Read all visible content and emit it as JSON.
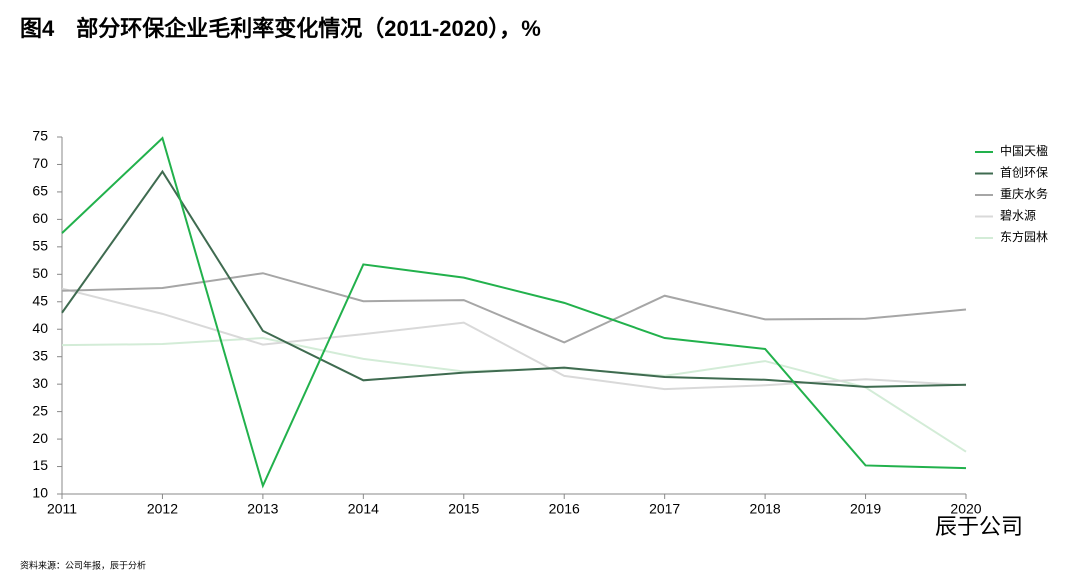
{
  "chart_data": {
    "type": "line",
    "title": "图4　部分环保企业毛利率变化情况（2011-2020），%",
    "source": "资料来源：公司年报，辰于分析",
    "watermark": "辰于公司",
    "categories": [
      "2011",
      "2012",
      "2013",
      "2014",
      "2015",
      "2016",
      "2017",
      "2018",
      "2019",
      "2020"
    ],
    "series": [
      {
        "name": "中国天楹",
        "color": "#22b14c",
        "values": [
          57.5,
          74.8,
          11.5,
          51.8,
          49.4,
          44.8,
          38.4,
          36.4,
          15.2,
          14.7
        ]
      },
      {
        "name": "首创环保",
        "color": "#3f6b50",
        "values": [
          43,
          68.7,
          39.7,
          30.7,
          32.1,
          33,
          31.3,
          30.8,
          29.5,
          29.9
        ]
      },
      {
        "name": "重庆水务",
        "color": "#a6a6a6",
        "values": [
          47,
          47.5,
          50.2,
          45.1,
          45.3,
          37.6,
          46.1,
          41.8,
          41.9,
          43.6
        ]
      },
      {
        "name": "碧水源",
        "color": "#d9d9d9",
        "values": [
          47.4,
          42.8,
          37.2,
          39.1,
          41.2,
          31.5,
          29.1,
          29.8,
          30.9,
          29.8
        ]
      },
      {
        "name": "东方园林",
        "color": "#d3ecd7",
        "values": [
          37.1,
          37.3,
          38.4,
          34.6,
          32.3,
          32.9,
          31.5,
          34.2,
          29.4,
          17.7
        ]
      }
    ],
    "ylim": [
      10,
      75
    ],
    "yticks": [
      10,
      15,
      20,
      25,
      30,
      35,
      40,
      45,
      50,
      55,
      60,
      65,
      70,
      75
    ],
    "grid": false,
    "legend": "right"
  }
}
